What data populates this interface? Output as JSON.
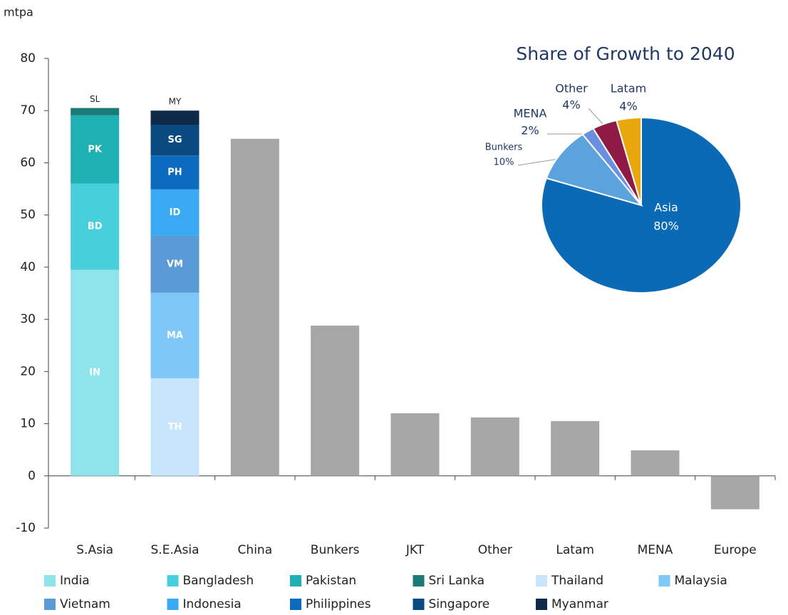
{
  "chart_data": [
    {
      "type": "bar",
      "y_label": "mtpa",
      "categories": [
        "S.Asia",
        "S.E.Asia",
        "China",
        "Bunkers",
        "JKT",
        "Other",
        "Latam",
        "MENA",
        "Europe"
      ],
      "series": [
        {
          "name": "India",
          "label": "IN",
          "color": "#8fe3ea",
          "values": [
            39.5,
            null,
            null,
            null,
            null,
            null,
            null,
            null,
            null
          ]
        },
        {
          "name": "Bangladesh",
          "label": "BD",
          "color": "#48cfdc",
          "values": [
            16.5,
            null,
            null,
            null,
            null,
            null,
            null,
            null,
            null
          ]
        },
        {
          "name": "Pakistan",
          "label": "PK",
          "color": "#1fb0b3",
          "values": [
            13.1,
            null,
            null,
            null,
            null,
            null,
            null,
            null,
            null
          ]
        },
        {
          "name": "Sri Lanka",
          "label": "SL",
          "color": "#1a7a78",
          "values": [
            1.4,
            null,
            null,
            null,
            null,
            null,
            null,
            null,
            null
          ]
        },
        {
          "name": "Thailand",
          "label": "TH",
          "color": "#c7e6fb",
          "values": [
            null,
            18.7,
            null,
            null,
            null,
            null,
            null,
            null,
            null
          ]
        },
        {
          "name": "Malaysia",
          "label": "MA",
          "color": "#7ec8f8",
          "values": [
            null,
            16.4,
            null,
            null,
            null,
            null,
            null,
            null,
            null
          ]
        },
        {
          "name": "Vietnam",
          "label": "VM",
          "color": "#5a9bd6",
          "values": [
            null,
            10.9,
            null,
            null,
            null,
            null,
            null,
            null,
            null
          ]
        },
        {
          "name": "Indonesia",
          "label": "ID",
          "color": "#3aaaf5",
          "values": [
            null,
            8.9,
            null,
            null,
            null,
            null,
            null,
            null,
            null
          ]
        },
        {
          "name": "Philippines",
          "label": "PH",
          "color": "#0d6bbf",
          "values": [
            null,
            6.5,
            null,
            null,
            null,
            null,
            null,
            null,
            null
          ]
        },
        {
          "name": "Singapore",
          "label": "SG",
          "color": "#0b4a80",
          "values": [
            null,
            5.9,
            null,
            null,
            null,
            null,
            null,
            null,
            null
          ]
        },
        {
          "name": "Myanmar",
          "label": "MY",
          "color": "#0f2a48",
          "values": [
            null,
            2.7,
            null,
            null,
            null,
            null,
            null,
            null,
            null
          ]
        },
        {
          "color": "#a6a6a6",
          "values": [
            null,
            null,
            64.6,
            28.8,
            12.0,
            11.2,
            10.5,
            4.9,
            -6.4
          ]
        }
      ],
      "ylim": [
        -10,
        80
      ],
      "yticks": [
        -10,
        0,
        10,
        20,
        30,
        40,
        50,
        60,
        70,
        80
      ]
    },
    {
      "type": "pie",
      "title": "Share of Growth to 2040",
      "categories": [
        "Asia",
        "Bunkers",
        "MENA",
        "Other",
        "Latam"
      ],
      "values": [
        80,
        10,
        2,
        4,
        4
      ],
      "value_labels": [
        "80%",
        "10%",
        "2%",
        "4%",
        "4%"
      ],
      "colors": [
        "#0a6ab5",
        "#5ba3dc",
        "#6a8ee0",
        "#8f1a45",
        "#e8a80c"
      ]
    }
  ]
}
